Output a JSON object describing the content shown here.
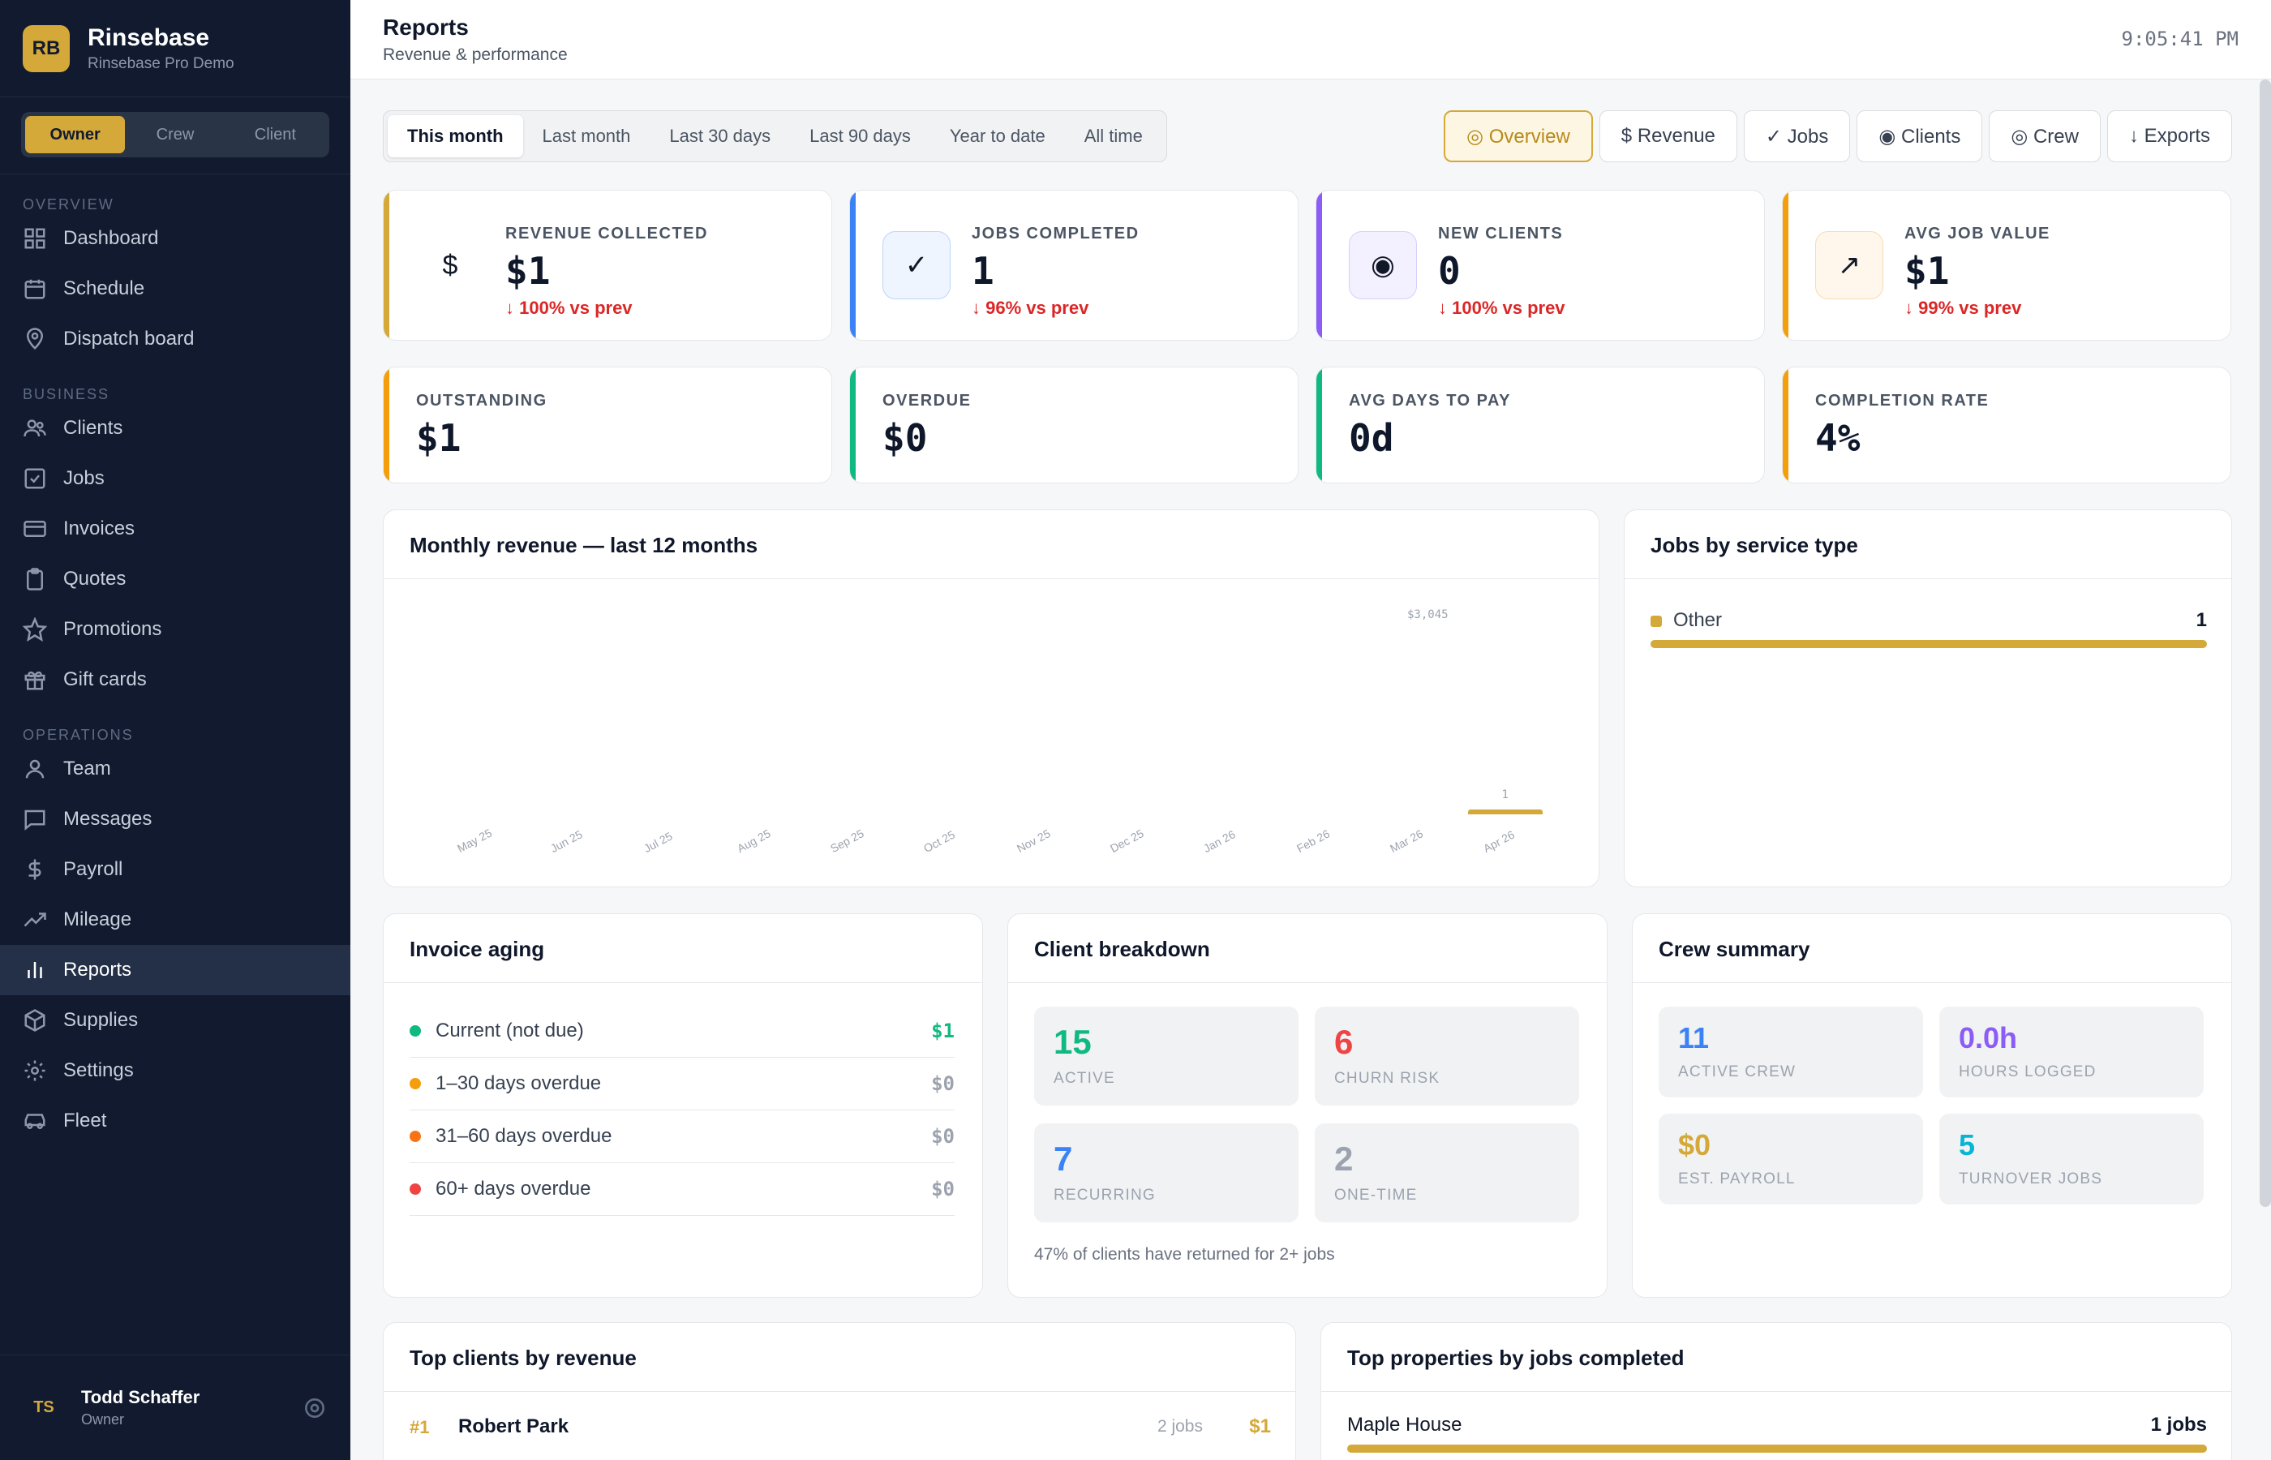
{
  "brand": {
    "initials": "RB",
    "name": "Rinsebase",
    "subtitle": "Rinsebase Pro Demo"
  },
  "roles": [
    "Owner",
    "Crew",
    "Client"
  ],
  "nav": {
    "overview_label": "OVERVIEW",
    "overview": [
      "Dashboard",
      "Schedule",
      "Dispatch board"
    ],
    "business_label": "BUSINESS",
    "business": [
      "Clients",
      "Jobs",
      "Invoices",
      "Quotes",
      "Promotions",
      "Gift cards"
    ],
    "operations_label": "OPERATIONS",
    "operations": [
      "Team",
      "Messages",
      "Payroll",
      "Mileage",
      "Reports",
      "Supplies",
      "Settings",
      "Fleet"
    ]
  },
  "user": {
    "initials": "TS",
    "name": "Todd Schaffer",
    "role": "Owner"
  },
  "header": {
    "title": "Reports",
    "subtitle": "Revenue & performance",
    "clock": "9:05:41 PM"
  },
  "ranges": [
    "This month",
    "Last month",
    "Last 30 days",
    "Last 90 days",
    "Year to date",
    "All time"
  ],
  "views": [
    "◎ Overview",
    "$ Revenue",
    "✓ Jobs",
    "◉ Clients",
    "◎ Crew",
    "↓ Exports"
  ],
  "kpis_top": [
    {
      "icon": "$",
      "label": "REVENUE COLLECTED",
      "value": "$1",
      "delta": "↓ 100% vs prev",
      "color": "#d4a93a",
      "icon_bg": "#ffffff"
    },
    {
      "icon": "✓",
      "label": "JOBS COMPLETED",
      "value": "1",
      "delta": "↓ 96% vs prev",
      "color": "#3b82f6",
      "icon_bg": "#eff5ff"
    },
    {
      "icon": "◉",
      "label": "NEW CLIENTS",
      "value": "0",
      "delta": "↓ 100% vs prev",
      "color": "#8b5cf6",
      "icon_bg": "#f3f0ff"
    },
    {
      "icon": "↗",
      "label": "AVG JOB VALUE",
      "value": "$1",
      "delta": "↓ 99% vs prev",
      "color": "#f59e0b",
      "icon_bg": "#fff7ec"
    }
  ],
  "kpis_bottom": [
    {
      "label": "OUTSTANDING",
      "value": "$1",
      "color": "#f59e0b"
    },
    {
      "label": "OVERDUE",
      "value": "$0",
      "color": "#10b981"
    },
    {
      "label": "AVG DAYS TO PAY",
      "value": "0d",
      "color": "#10b981"
    },
    {
      "label": "COMPLETION RATE",
      "value": "4%",
      "color": "#f59e0b"
    }
  ],
  "monthly_revenue": {
    "title": "Monthly revenue — last 12 months",
    "max_label": "$3,045",
    "bar_value_label": "1"
  },
  "chart_data": {
    "type": "bar",
    "categories": [
      "May 25",
      "Jun 25",
      "Jul 25",
      "Aug 25",
      "Sep 25",
      "Oct 25",
      "Nov 25",
      "Dec 25",
      "Jan 26",
      "Feb 26",
      "Mar 26",
      "Apr 26"
    ],
    "values": [
      0,
      0,
      0,
      0,
      0,
      0,
      0,
      0,
      0,
      0,
      0,
      1
    ],
    "title": "Monthly revenue — last 12 months",
    "xlabel": "",
    "ylabel": "",
    "ylim": [
      0,
      3045
    ],
    "bar_color": "#d4a93a"
  },
  "service_types": {
    "title": "Jobs by service type",
    "items": [
      {
        "name": "Other",
        "count": "1",
        "fraction": 1.0
      }
    ]
  },
  "invoice_aging": {
    "title": "Invoice aging",
    "rows": [
      {
        "label": "Current (not due)",
        "value": "$1",
        "color": "#10b981",
        "value_color": "#10b981"
      },
      {
        "label": "1–30 days overdue",
        "value": "$0",
        "color": "#f59e0b",
        "value_color": "#9ca3af"
      },
      {
        "label": "31–60 days overdue",
        "value": "$0",
        "color": "#f97316",
        "value_color": "#9ca3af"
      },
      {
        "label": "60+ days overdue",
        "value": "$0",
        "color": "#ef4444",
        "value_color": "#9ca3af"
      }
    ]
  },
  "client_breakdown": {
    "title": "Client breakdown",
    "tiles": [
      {
        "num": "15",
        "label": "ACTIVE",
        "color": "#10b981"
      },
      {
        "num": "6",
        "label": "CHURN RISK",
        "color": "#ef4444"
      },
      {
        "num": "7",
        "label": "RECURRING",
        "color": "#3b82f6"
      },
      {
        "num": "2",
        "label": "ONE-TIME",
        "color": "#9ca3af"
      }
    ],
    "footnote": "47% of clients have returned for 2+ jobs"
  },
  "crew_summary": {
    "title": "Crew summary",
    "tiles": [
      {
        "num": "11",
        "label": "ACTIVE CREW",
        "color": "#3b82f6"
      },
      {
        "num": "0.0h",
        "label": "HOURS LOGGED",
        "color": "#8b5cf6"
      },
      {
        "num": "$0",
        "label": "EST. PAYROLL",
        "color": "#d4a93a"
      },
      {
        "num": "5",
        "label": "TURNOVER JOBS",
        "color": "#06b6d4"
      }
    ]
  },
  "top_clients": {
    "title": "Top clients by revenue",
    "rows": [
      {
        "rank": "#1",
        "name": "Robert Park",
        "jobs": "2 jobs",
        "amount": "$1"
      }
    ]
  },
  "top_properties": {
    "title": "Top properties by jobs completed",
    "rows": [
      {
        "name": "Maple House",
        "jobs": "1 jobs",
        "fraction": 1.0
      }
    ]
  }
}
